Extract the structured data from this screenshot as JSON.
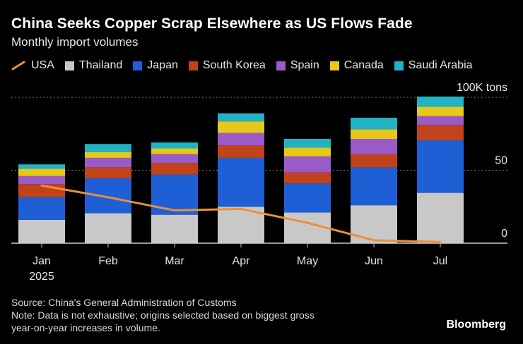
{
  "title": "China Seeks Copper Scrap Elsewhere as US Flows Fade",
  "subtitle": "Monthly import volumes",
  "source": "Source: China's General Administration of Customs",
  "note_line1": "Note: Data is not exhaustive; origins selected based on biggest gross",
  "note_line2": "year-on-year increases in volume.",
  "brand": "Bloomberg",
  "colors": {
    "USA": "#e8913a",
    "Thailand": "#c8c8c8",
    "Japan": "#1f5fd6",
    "South Korea": "#c2431a",
    "Spain": "#9a5ac8",
    "Canada": "#e6c81a",
    "Saudi Arabia": "#21b3c4",
    "grid": "#777777",
    "axis": "#cccccc"
  },
  "legend": [
    "USA",
    "Thailand",
    "Japan",
    "South Korea",
    "Spain",
    "Canada",
    "Saudi Arabia"
  ],
  "chart_data": {
    "type": "bar",
    "stacked": true,
    "title": "China Seeks Copper Scrap Elsewhere as US Flows Fade",
    "subtitle": "Monthly import volumes",
    "categories": [
      "Jan",
      "Feb",
      "Mar",
      "Apr",
      "May",
      "Jun",
      "Jul"
    ],
    "year_label": "2025",
    "ylim": [
      0,
      100
    ],
    "yticks": [
      0,
      50,
      100
    ],
    "ytick_labels": [
      "0",
      "50",
      "100K tons"
    ],
    "grid": true,
    "series": [
      {
        "name": "Thailand",
        "values": [
          16,
          20.5,
          19.5,
          25,
          21,
          26,
          34.5
        ]
      },
      {
        "name": "Japan",
        "values": [
          15.5,
          24,
          27.5,
          33.5,
          20,
          26,
          36
        ]
      },
      {
        "name": "South Korea",
        "values": [
          9,
          7.5,
          8,
          8.5,
          7.5,
          9,
          10.5
        ]
      },
      {
        "name": "Spain",
        "values": [
          5.5,
          6.5,
          6,
          8.5,
          11,
          10.5,
          6
        ]
      },
      {
        "name": "Canada",
        "values": [
          5,
          4,
          4,
          8,
          6,
          6.5,
          6.5
        ]
      },
      {
        "name": "Saudi Arabia",
        "values": [
          3,
          5.5,
          4,
          5.5,
          6,
          8,
          7
        ]
      }
    ],
    "line_series": {
      "name": "USA",
      "values": [
        39.5,
        31.5,
        22.5,
        23.5,
        14,
        2,
        0.8
      ]
    }
  }
}
